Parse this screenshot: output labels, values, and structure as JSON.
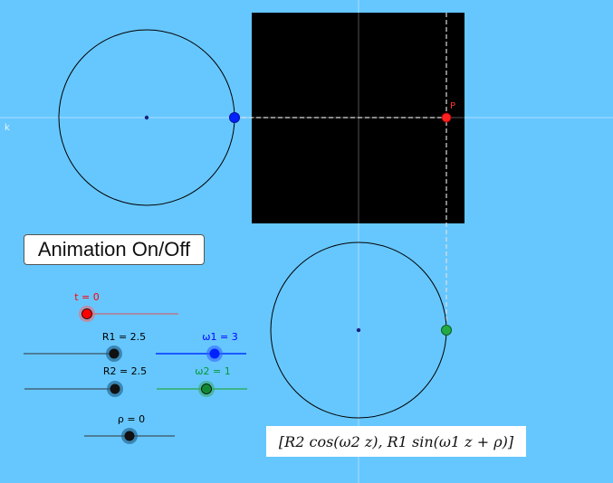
{
  "button": {
    "label": "Animation On/Off"
  },
  "axis": {
    "label": "k"
  },
  "point": {
    "label": "P"
  },
  "sliders": {
    "t": {
      "label": "t = 0",
      "color": "#ff0000"
    },
    "r1": {
      "label": "R1 = 2.5",
      "color": "#000000"
    },
    "w1": {
      "label": "ω1 = 3",
      "color": "#0000ff"
    },
    "r2": {
      "label": "R2 = 2.5",
      "color": "#000000"
    },
    "w2": {
      "label": "ω2 = 1",
      "color": "#009933"
    },
    "rho": {
      "label": "ρ = 0",
      "color": "#000000"
    }
  },
  "formula": {
    "text": "[R2  cos(ω2 z), R1  sin(ω1 z + ρ)]"
  },
  "colors": {
    "background": "#66c7ff",
    "plot_background": "#000000",
    "point_p": "#ff2020",
    "blue_point": "#0022ff",
    "green_point": "#22aa44"
  }
}
